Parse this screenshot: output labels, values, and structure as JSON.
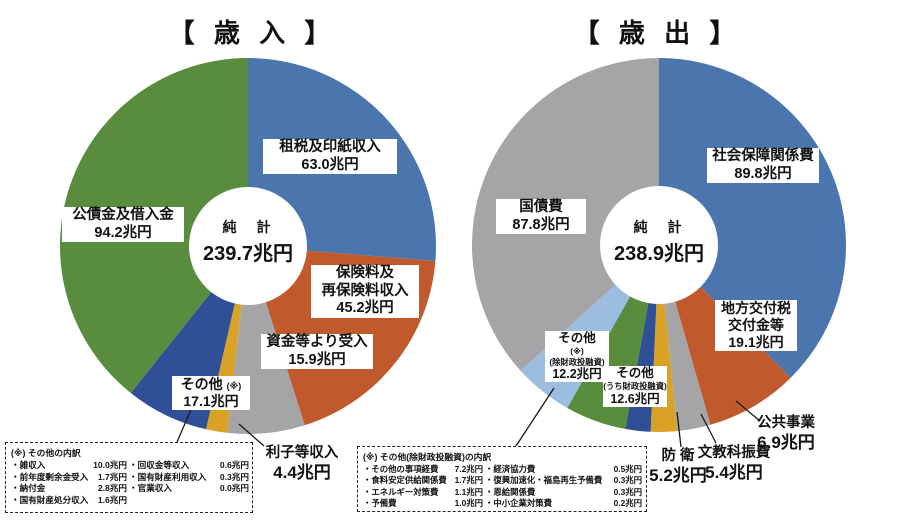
{
  "chart_data": [
    {
      "type": "pie",
      "donut": true,
      "title": "【 歳 入 】",
      "direction": "clockwise-from-top",
      "total": 239.7,
      "unit": "兆円",
      "legend_position": "none",
      "center": {
        "label": "純　計",
        "total_display": "239.7兆円"
      },
      "segments": [
        {
          "key": "tax-and-stamp-revenues",
          "name": "租税及印紙収入",
          "name_lines": [
            "租税及印紙収入"
          ],
          "value": 63.0,
          "display": "63.0兆円",
          "color": "#4A76AD"
        },
        {
          "key": "insurance-premiums",
          "name": "保険料及再保険料収入",
          "name_lines": [
            "保険料及",
            "再保険料収入"
          ],
          "value": 45.2,
          "display": "45.2兆円",
          "color": "#C0592B"
        },
        {
          "key": "receipts-from-funds",
          "name": "資金等より受入",
          "name_lines": [
            "資金等より受入"
          ],
          "value": 15.9,
          "display": "15.9兆円",
          "color": "#A5A5A7"
        },
        {
          "key": "interest-receipts",
          "name": "利子等収入",
          "name_lines": [
            "利子等収入"
          ],
          "value": 4.4,
          "display": "4.4兆円",
          "color": "#D9A226"
        },
        {
          "key": "others",
          "name": "その他",
          "note": "(※)",
          "name_lines": [
            "その他"
          ],
          "value": 17.1,
          "display": "17.1兆円",
          "color": "#2F5096"
        },
        {
          "key": "government-bonds-and-borrowings",
          "name": "公債金及借入金",
          "name_lines": [
            "公債金及借入金"
          ],
          "value": 94.2,
          "display": "94.2兆円",
          "color": "#5A8C3E"
        }
      ],
      "footnote": {
        "title": "(※) その他の内訳",
        "items": [
          {
            "name": "・雑収入",
            "value": "10.0兆円"
          },
          {
            "name": "・回収金等収入",
            "value": "0.6兆円"
          },
          {
            "name": "・前年度剰余金受入",
            "value": "1.7兆円"
          },
          {
            "name": "・国有財産利用収入",
            "value": "0.3兆円"
          },
          {
            "name": "・納付金",
            "value": "2.8兆円"
          },
          {
            "name": "・官業収入",
            "value": "0.0兆円"
          },
          {
            "name": "・国有財産処分収入",
            "value": "1.6兆円"
          }
        ]
      }
    },
    {
      "type": "pie",
      "donut": true,
      "title": "【 歳 出 】",
      "direction": "clockwise-from-top",
      "total": 238.9,
      "unit": "兆円",
      "legend_position": "none",
      "center": {
        "label": "純　計",
        "total_display": "238.9兆円"
      },
      "segments": [
        {
          "key": "social-security",
          "name": "社会保障関係費",
          "name_lines": [
            "社会保障関係費"
          ],
          "value": 89.8,
          "display": "89.8兆円",
          "color": "#4A76AD"
        },
        {
          "key": "local-allocation-tax",
          "name": "地方交付税交付金等",
          "name_lines": [
            "地方交付税",
            "交付金等"
          ],
          "value": 19.1,
          "display": "19.1兆円",
          "color": "#C0592B"
        },
        {
          "key": "public-works",
          "name": "公共事業",
          "name_lines": [
            "公共事業"
          ],
          "value": 6.9,
          "display": "6.9兆円",
          "color": "#A5A5A7"
        },
        {
          "key": "education-science",
          "name": "文教科振費",
          "name_lines": [
            "文教科振費"
          ],
          "value": 5.4,
          "display": "5.4兆円",
          "color": "#D9A226"
        },
        {
          "key": "defense",
          "name": "防 衛",
          "name_lines": [
            "防 衛"
          ],
          "value": 5.2,
          "display": "5.2兆円",
          "color": "#2F5096"
        },
        {
          "key": "others-incl-filp",
          "name": "その他",
          "sub": "(うち財政投融資)",
          "name_lines": [
            "その他"
          ],
          "value": 12.6,
          "display": "12.6兆円",
          "color": "#5A8C3E"
        },
        {
          "key": "others-excl-filp",
          "name": "その他",
          "note": "(※)",
          "sub": "(除財政投融資)",
          "name_lines": [
            "その他"
          ],
          "value": 12.2,
          "display": "12.2兆円",
          "color": "#9CBCE0"
        },
        {
          "key": "national-debt-service",
          "name": "国債費",
          "name_lines": [
            "国債費"
          ],
          "value": 87.8,
          "display": "87.8兆円",
          "color": "#A5A5A7"
        }
      ],
      "footnote": {
        "title": "(※) その他(除財政投融資)の内訳",
        "items": [
          {
            "name": "・その他の事項経費",
            "value": "7.2兆円"
          },
          {
            "name": "・経済協力費",
            "value": "0.5兆円"
          },
          {
            "name": "・食料安定供給関係費",
            "value": "1.7兆円"
          },
          {
            "name": "・復興加速化・福島再生予備費",
            "value": "0.3兆円"
          },
          {
            "name": "・エネルギー対策費",
            "value": "1.1兆円"
          },
          {
            "name": "・恩給関係費",
            "value": "0.3兆円"
          },
          {
            "name": "・予備費",
            "value": "1.0兆円"
          },
          {
            "name": "・中小企業対策費",
            "value": "0.2兆円"
          }
        ]
      }
    }
  ]
}
